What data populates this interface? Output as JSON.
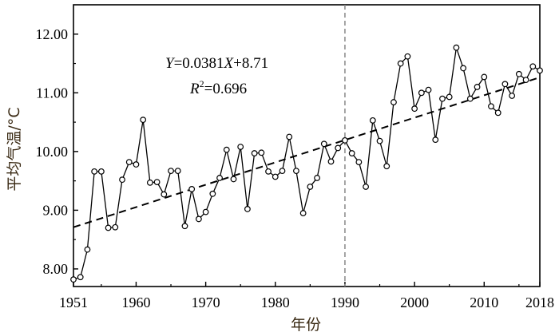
{
  "chart_data": {
    "type": "line",
    "title": "",
    "xlabel": "年份",
    "ylabel": "平均气温/°C",
    "xlim": [
      1951,
      2018
    ],
    "ylim": [
      7.7,
      12.5
    ],
    "xticks": [
      1951,
      1960,
      1970,
      1980,
      1990,
      2000,
      2010,
      2018
    ],
    "yticks": [
      8.0,
      9.0,
      10.0,
      11.0,
      12.0
    ],
    "ytick_labels": [
      "8.00",
      "9.00",
      "10.00",
      "11.00",
      "12.00"
    ],
    "x": [
      1951,
      1952,
      1953,
      1954,
      1955,
      1956,
      1957,
      1958,
      1959,
      1960,
      1961,
      1962,
      1963,
      1964,
      1965,
      1966,
      1967,
      1968,
      1969,
      1970,
      1971,
      1972,
      1973,
      1974,
      1975,
      1976,
      1977,
      1978,
      1979,
      1980,
      1981,
      1982,
      1983,
      1984,
      1985,
      1986,
      1987,
      1988,
      1989,
      1990,
      1991,
      1992,
      1993,
      1994,
      1995,
      1996,
      1997,
      1998,
      1999,
      2000,
      2001,
      2002,
      2003,
      2004,
      2005,
      2006,
      2007,
      2008,
      2009,
      2010,
      2011,
      2012,
      2013,
      2014,
      2015,
      2016,
      2017,
      2018
    ],
    "series": [
      {
        "name": "平均气温",
        "values": [
          7.82,
          7.86,
          8.33,
          9.66,
          9.66,
          8.7,
          8.71,
          9.52,
          9.82,
          9.78,
          10.54,
          9.47,
          9.48,
          9.27,
          9.67,
          9.67,
          8.73,
          9.36,
          8.85,
          8.97,
          9.28,
          9.55,
          10.03,
          9.53,
          10.08,
          9.02,
          9.97,
          9.98,
          9.66,
          9.57,
          9.67,
          10.25,
          9.67,
          8.95,
          9.4,
          9.55,
          10.13,
          9.83,
          10.06,
          10.19,
          9.97,
          9.82,
          9.4,
          10.53,
          10.18,
          9.75,
          10.84,
          11.5,
          11.62,
          10.73,
          11.0,
          11.05,
          10.2,
          10.9,
          10.93,
          11.77,
          11.42,
          10.9,
          11.1,
          11.27,
          10.77,
          10.66,
          11.15,
          10.95,
          11.32,
          11.22,
          11.45,
          11.38
        ]
      }
    ],
    "trendline": {
      "slope": 0.0381,
      "intercept_at_1951": 8.71,
      "style": "dashed"
    },
    "vertical_line": {
      "x": 1990,
      "style": "dashed",
      "color": "#888888"
    },
    "annotations": {
      "equation": {
        "Y": "Y",
        "eq1": "=0.0381",
        "X": "X",
        "eq2": "+8.71"
      },
      "r2": {
        "R": "R",
        "sup": "2",
        "eq": "=0.696"
      }
    },
    "colors": {
      "line": "#000000",
      "marker_fill": "#ffffff",
      "axis": "#000000",
      "vline": "#888888"
    }
  }
}
